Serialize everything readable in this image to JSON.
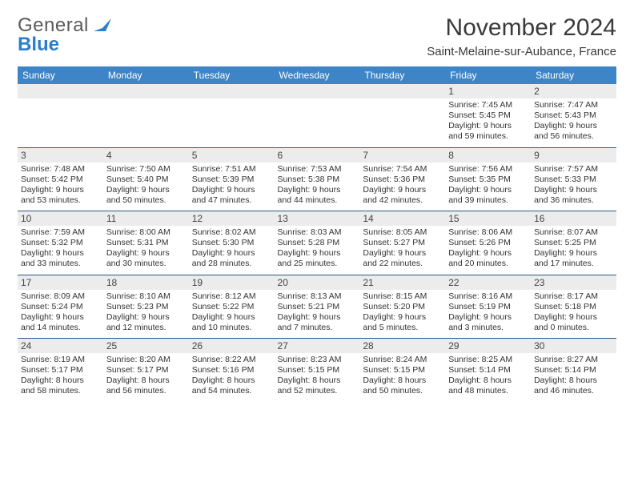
{
  "brand": {
    "word1": "General",
    "word2": "Blue",
    "color_text": "#5a5a5a",
    "color_blue": "#2a7fc9"
  },
  "title": "November 2024",
  "location": "Saint-Melaine-sur-Aubance, France",
  "colors": {
    "header_bg": "#3d85c6",
    "header_text": "#ffffff",
    "spacer_bg": "#ececec",
    "daynum_bg": "#ececec",
    "rule": "#2a5a8a",
    "body_text": "#333333",
    "page_bg": "#ffffff"
  },
  "dow": [
    "Sunday",
    "Monday",
    "Tuesday",
    "Wednesday",
    "Thursday",
    "Friday",
    "Saturday"
  ],
  "weeks": [
    [
      null,
      null,
      null,
      null,
      null,
      {
        "n": "1",
        "sunrise": "Sunrise: 7:45 AM",
        "sunset": "Sunset: 5:45 PM",
        "daylight": "Daylight: 9 hours and 59 minutes."
      },
      {
        "n": "2",
        "sunrise": "Sunrise: 7:47 AM",
        "sunset": "Sunset: 5:43 PM",
        "daylight": "Daylight: 9 hours and 56 minutes."
      }
    ],
    [
      {
        "n": "3",
        "sunrise": "Sunrise: 7:48 AM",
        "sunset": "Sunset: 5:42 PM",
        "daylight": "Daylight: 9 hours and 53 minutes."
      },
      {
        "n": "4",
        "sunrise": "Sunrise: 7:50 AM",
        "sunset": "Sunset: 5:40 PM",
        "daylight": "Daylight: 9 hours and 50 minutes."
      },
      {
        "n": "5",
        "sunrise": "Sunrise: 7:51 AM",
        "sunset": "Sunset: 5:39 PM",
        "daylight": "Daylight: 9 hours and 47 minutes."
      },
      {
        "n": "6",
        "sunrise": "Sunrise: 7:53 AM",
        "sunset": "Sunset: 5:38 PM",
        "daylight": "Daylight: 9 hours and 44 minutes."
      },
      {
        "n": "7",
        "sunrise": "Sunrise: 7:54 AM",
        "sunset": "Sunset: 5:36 PM",
        "daylight": "Daylight: 9 hours and 42 minutes."
      },
      {
        "n": "8",
        "sunrise": "Sunrise: 7:56 AM",
        "sunset": "Sunset: 5:35 PM",
        "daylight": "Daylight: 9 hours and 39 minutes."
      },
      {
        "n": "9",
        "sunrise": "Sunrise: 7:57 AM",
        "sunset": "Sunset: 5:33 PM",
        "daylight": "Daylight: 9 hours and 36 minutes."
      }
    ],
    [
      {
        "n": "10",
        "sunrise": "Sunrise: 7:59 AM",
        "sunset": "Sunset: 5:32 PM",
        "daylight": "Daylight: 9 hours and 33 minutes."
      },
      {
        "n": "11",
        "sunrise": "Sunrise: 8:00 AM",
        "sunset": "Sunset: 5:31 PM",
        "daylight": "Daylight: 9 hours and 30 minutes."
      },
      {
        "n": "12",
        "sunrise": "Sunrise: 8:02 AM",
        "sunset": "Sunset: 5:30 PM",
        "daylight": "Daylight: 9 hours and 28 minutes."
      },
      {
        "n": "13",
        "sunrise": "Sunrise: 8:03 AM",
        "sunset": "Sunset: 5:28 PM",
        "daylight": "Daylight: 9 hours and 25 minutes."
      },
      {
        "n": "14",
        "sunrise": "Sunrise: 8:05 AM",
        "sunset": "Sunset: 5:27 PM",
        "daylight": "Daylight: 9 hours and 22 minutes."
      },
      {
        "n": "15",
        "sunrise": "Sunrise: 8:06 AM",
        "sunset": "Sunset: 5:26 PM",
        "daylight": "Daylight: 9 hours and 20 minutes."
      },
      {
        "n": "16",
        "sunrise": "Sunrise: 8:07 AM",
        "sunset": "Sunset: 5:25 PM",
        "daylight": "Daylight: 9 hours and 17 minutes."
      }
    ],
    [
      {
        "n": "17",
        "sunrise": "Sunrise: 8:09 AM",
        "sunset": "Sunset: 5:24 PM",
        "daylight": "Daylight: 9 hours and 14 minutes."
      },
      {
        "n": "18",
        "sunrise": "Sunrise: 8:10 AM",
        "sunset": "Sunset: 5:23 PM",
        "daylight": "Daylight: 9 hours and 12 minutes."
      },
      {
        "n": "19",
        "sunrise": "Sunrise: 8:12 AM",
        "sunset": "Sunset: 5:22 PM",
        "daylight": "Daylight: 9 hours and 10 minutes."
      },
      {
        "n": "20",
        "sunrise": "Sunrise: 8:13 AM",
        "sunset": "Sunset: 5:21 PM",
        "daylight": "Daylight: 9 hours and 7 minutes."
      },
      {
        "n": "21",
        "sunrise": "Sunrise: 8:15 AM",
        "sunset": "Sunset: 5:20 PM",
        "daylight": "Daylight: 9 hours and 5 minutes."
      },
      {
        "n": "22",
        "sunrise": "Sunrise: 8:16 AM",
        "sunset": "Sunset: 5:19 PM",
        "daylight": "Daylight: 9 hours and 3 minutes."
      },
      {
        "n": "23",
        "sunrise": "Sunrise: 8:17 AM",
        "sunset": "Sunset: 5:18 PM",
        "daylight": "Daylight: 9 hours and 0 minutes."
      }
    ],
    [
      {
        "n": "24",
        "sunrise": "Sunrise: 8:19 AM",
        "sunset": "Sunset: 5:17 PM",
        "daylight": "Daylight: 8 hours and 58 minutes."
      },
      {
        "n": "25",
        "sunrise": "Sunrise: 8:20 AM",
        "sunset": "Sunset: 5:17 PM",
        "daylight": "Daylight: 8 hours and 56 minutes."
      },
      {
        "n": "26",
        "sunrise": "Sunrise: 8:22 AM",
        "sunset": "Sunset: 5:16 PM",
        "daylight": "Daylight: 8 hours and 54 minutes."
      },
      {
        "n": "27",
        "sunrise": "Sunrise: 8:23 AM",
        "sunset": "Sunset: 5:15 PM",
        "daylight": "Daylight: 8 hours and 52 minutes."
      },
      {
        "n": "28",
        "sunrise": "Sunrise: 8:24 AM",
        "sunset": "Sunset: 5:15 PM",
        "daylight": "Daylight: 8 hours and 50 minutes."
      },
      {
        "n": "29",
        "sunrise": "Sunrise: 8:25 AM",
        "sunset": "Sunset: 5:14 PM",
        "daylight": "Daylight: 8 hours and 48 minutes."
      },
      {
        "n": "30",
        "sunrise": "Sunrise: 8:27 AM",
        "sunset": "Sunset: 5:14 PM",
        "daylight": "Daylight: 8 hours and 46 minutes."
      }
    ]
  ]
}
